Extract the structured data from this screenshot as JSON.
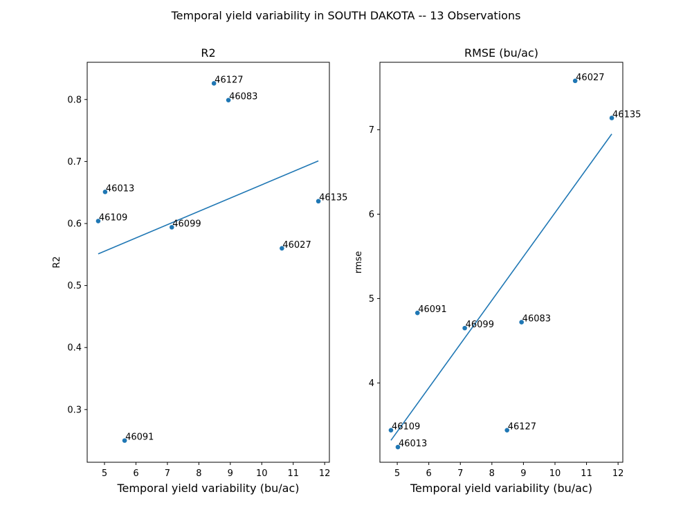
{
  "suptitle": "Temporal yield variability in SOUTH DAKOTA -- 13 Observations",
  "series_color": "#1f77b4",
  "chart_data": [
    {
      "type": "scatter",
      "title": "R2",
      "xlabel": "Temporal yield variability (bu/ac)",
      "ylabel": "R2",
      "xlim": [
        4.45,
        12.15
      ],
      "ylim": [
        0.215,
        0.86
      ],
      "xticks": [
        5,
        6,
        7,
        8,
        9,
        10,
        11,
        12
      ],
      "yticks": [
        0.3,
        0.4,
        0.5,
        0.6,
        0.7,
        0.8
      ],
      "grid": false,
      "points": [
        {
          "label": "46127",
          "x": 8.48,
          "y": 0.826
        },
        {
          "label": "46083",
          "x": 8.94,
          "y": 0.799
        },
        {
          "label": "46013",
          "x": 5.02,
          "y": 0.651
        },
        {
          "label": "46135",
          "x": 11.8,
          "y": 0.636
        },
        {
          "label": "46109",
          "x": 4.8,
          "y": 0.604
        },
        {
          "label": "46099",
          "x": 7.14,
          "y": 0.594
        },
        {
          "label": "46027",
          "x": 10.64,
          "y": 0.56
        },
        {
          "label": "46091",
          "x": 5.64,
          "y": 0.25
        }
      ],
      "fit_line": {
        "x": [
          4.8,
          11.8
        ],
        "y": [
          0.551,
          0.701
        ]
      }
    },
    {
      "type": "scatter",
      "title": "RMSE (bu/ac)",
      "xlabel": "Temporal yield variability (bu/ac)",
      "ylabel": "rmse",
      "xlim": [
        4.45,
        12.15
      ],
      "ylim": [
        3.06,
        7.8
      ],
      "xticks": [
        5,
        6,
        7,
        8,
        9,
        10,
        11,
        12
      ],
      "yticks": [
        4,
        5,
        6,
        7
      ],
      "grid": false,
      "points": [
        {
          "label": "46027",
          "x": 10.64,
          "y": 7.58
        },
        {
          "label": "46135",
          "x": 11.8,
          "y": 7.14
        },
        {
          "label": "46091",
          "x": 5.64,
          "y": 4.83
        },
        {
          "label": "46083",
          "x": 8.94,
          "y": 4.72
        },
        {
          "label": "46099",
          "x": 7.14,
          "y": 4.65
        },
        {
          "label": "46109",
          "x": 4.8,
          "y": 3.44
        },
        {
          "label": "46127",
          "x": 8.48,
          "y": 3.44
        },
        {
          "label": "46013",
          "x": 5.02,
          "y": 3.24
        }
      ],
      "fit_line": {
        "x": [
          4.8,
          11.8
        ],
        "y": [
          3.32,
          6.95
        ]
      }
    }
  ]
}
